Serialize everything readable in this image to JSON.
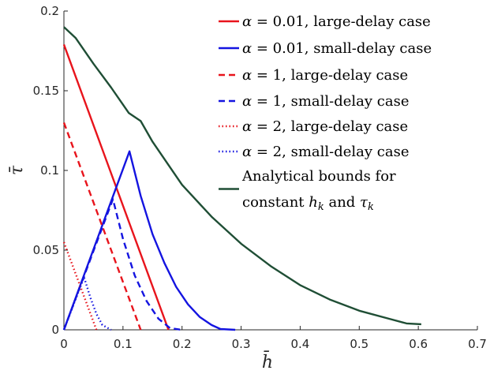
{
  "chart_data": {
    "type": "line",
    "xlabel": "h̄",
    "ylabel": "τ̄",
    "xlim": [
      0,
      0.7
    ],
    "ylim": [
      0,
      0.2
    ],
    "xticks": [
      0,
      0.1,
      0.2,
      0.3,
      0.4,
      0.5,
      0.6,
      0.7
    ],
    "yticks": [
      0,
      0.05,
      0.1,
      0.15,
      0.2
    ],
    "xtick_labels": [
      "0",
      "0.1",
      "0.2",
      "0.3",
      "0.4",
      "0.5",
      "0.6",
      "0.7"
    ],
    "ytick_labels": [
      "0",
      "0.05",
      "0.1",
      "0.15",
      "0.2"
    ],
    "grid": false,
    "legend_position": "top-right",
    "series": [
      {
        "name": "α = 0.01, large-delay case",
        "color": "#e8141c",
        "dash": "solid",
        "x": [
          0,
          0.177
        ],
        "y": [
          0.179,
          0
        ]
      },
      {
        "name": "α = 0.01, small-delay case",
        "color": "#1414e0",
        "dash": "solid",
        "x": [
          0,
          0.111,
          0.13,
          0.15,
          0.17,
          0.19,
          0.21,
          0.23,
          0.25,
          0.265,
          0.29
        ],
        "y": [
          0,
          0.112,
          0.084,
          0.06,
          0.042,
          0.027,
          0.016,
          0.008,
          0.003,
          0.0005,
          0
        ]
      },
      {
        "name": "α = 1, large-delay case",
        "color": "#e8141c",
        "dash": "dashed",
        "x": [
          0,
          0.13
        ],
        "y": [
          0.13,
          0
        ]
      },
      {
        "name": "α = 1, small-delay case",
        "color": "#1414e0",
        "dash": "dashed",
        "x": [
          0,
          0.083,
          0.1,
          0.12,
          0.14,
          0.16,
          0.18,
          0.2
        ],
        "y": [
          0,
          0.082,
          0.057,
          0.034,
          0.018,
          0.007,
          0.001,
          0
        ]
      },
      {
        "name": "α = 2, large-delay case",
        "color": "#e8141c",
        "dash": "dotted",
        "x": [
          0,
          0.055
        ],
        "y": [
          0.055,
          0
        ]
      },
      {
        "name": "α = 2, small-delay case",
        "color": "#1414e0",
        "dash": "dotted",
        "x": [
          0,
          0.034,
          0.045,
          0.055,
          0.065,
          0.08
        ],
        "y": [
          0,
          0.033,
          0.02,
          0.01,
          0.003,
          0
        ]
      },
      {
        "name": "Analytical bounds for constant h_k and τ_k",
        "color": "#1f4e35",
        "dash": "solid",
        "x": [
          0,
          0.02,
          0.05,
          0.08,
          0.11,
          0.13,
          0.15,
          0.2,
          0.25,
          0.3,
          0.35,
          0.4,
          0.45,
          0.5,
          0.55,
          0.58,
          0.605
        ],
        "y": [
          0.19,
          0.183,
          0.167,
          0.152,
          0.136,
          0.131,
          0.118,
          0.091,
          0.071,
          0.054,
          0.04,
          0.028,
          0.019,
          0.012,
          0.007,
          0.004,
          0.0035
        ]
      }
    ]
  },
  "legend": [
    {
      "parts": [
        [
          "m",
          "α"
        ],
        [
          "t",
          " = 0.01, large-delay case"
        ]
      ]
    },
    {
      "parts": [
        [
          "m",
          "α"
        ],
        [
          "t",
          " = 0.01, small-delay case"
        ]
      ]
    },
    {
      "parts": [
        [
          "m",
          "α"
        ],
        [
          "t",
          " = 1, large-delay case"
        ]
      ]
    },
    {
      "parts": [
        [
          "m",
          "α"
        ],
        [
          "t",
          " = 1, small-delay case"
        ]
      ]
    },
    {
      "parts": [
        [
          "m",
          "α"
        ],
        [
          "t",
          " = 2, large-delay case"
        ]
      ]
    },
    {
      "parts": [
        [
          "m",
          "α"
        ],
        [
          "t",
          " = 2, small-delay case"
        ]
      ]
    },
    {
      "parts": [
        [
          "t",
          "Analytical bounds for"
        ]
      ]
    },
    {
      "parts": [
        [
          "t",
          "constant "
        ],
        [
          "m",
          "h"
        ],
        [
          "s",
          "k"
        ],
        [
          "t",
          " and "
        ],
        [
          "m",
          "τ"
        ],
        [
          "s",
          "k"
        ]
      ]
    }
  ]
}
